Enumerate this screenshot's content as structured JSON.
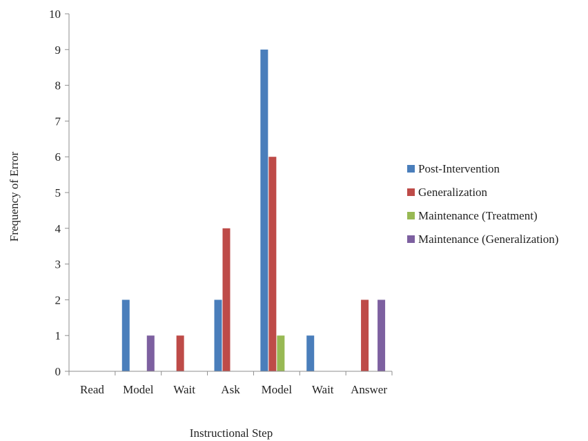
{
  "chart_data": {
    "type": "bar",
    "categories": [
      "Read",
      "Model",
      "Wait",
      "Ask",
      "Model",
      "Wait",
      "Answer"
    ],
    "series": [
      {
        "name": "Post-Intervention",
        "color": "#4a7ebb",
        "values": [
          0,
          2,
          0,
          2,
          9,
          1,
          0
        ]
      },
      {
        "name": "Generalization",
        "color": "#be4b48",
        "values": [
          0,
          0,
          1,
          4,
          6,
          0,
          2
        ]
      },
      {
        "name": "Maintenance (Treatment)",
        "color": "#98b954",
        "values": [
          0,
          0,
          0,
          0,
          1,
          0,
          0
        ]
      },
      {
        "name": "Maintenance (Generalization)",
        "color": "#7d60a0",
        "values": [
          0,
          1,
          0,
          0,
          0,
          0,
          2
        ]
      }
    ],
    "xlabel": "Instructional Step",
    "ylabel": "Frequency of Error",
    "ylim": [
      0,
      10
    ],
    "yticks": [
      0,
      1,
      2,
      3,
      4,
      5,
      6,
      7,
      8,
      9,
      10
    ],
    "grid": false,
    "legend_position": "right"
  }
}
